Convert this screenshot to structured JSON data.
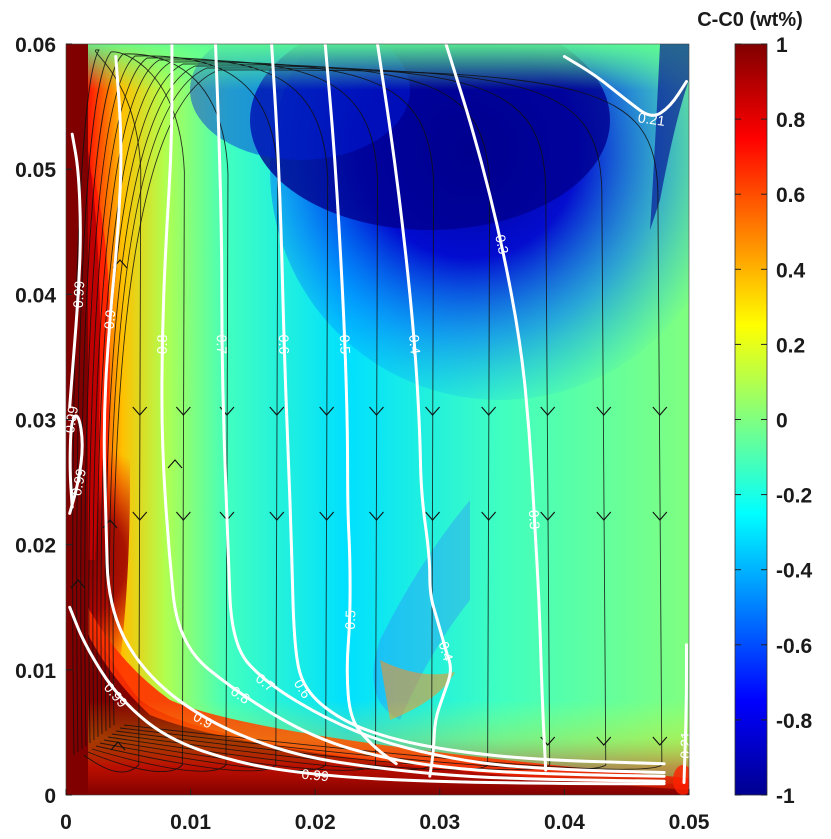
{
  "chart_data": {
    "type": "heatmap",
    "title": "",
    "xlabel": "",
    "ylabel": "",
    "xlim": [
      0,
      0.05
    ],
    "ylim": [
      0,
      0.06
    ],
    "x_ticks": [
      "0",
      "0.01",
      "0.02",
      "0.03",
      "0.04",
      "0.05"
    ],
    "y_ticks": [
      "0",
      "0.01",
      "0.02",
      "0.03",
      "0.04",
      "0.05",
      "0.06"
    ],
    "colorbar": {
      "title": "C-C0 (wt%)",
      "range": [
        -1,
        1
      ],
      "ticks": [
        "-1",
        "-0.8",
        "-0.6",
        "-0.4",
        "-0.2",
        "0",
        "0.2",
        "0.4",
        "0.6",
        "0.8",
        "1"
      ],
      "colormap": [
        "#00008f",
        "#0000ff",
        "#0080ff",
        "#00ffff",
        "#80ff80",
        "#ffff00",
        "#ff8000",
        "#ff0000",
        "#800000"
      ]
    },
    "contours": [
      {
        "level": 0.99,
        "label": "0.99",
        "points": [
          [
            0.0005,
            0.0528
          ],
          [
            0.001,
            0.05
          ],
          [
            0.0012,
            0.045
          ],
          [
            0.001,
            0.04
          ],
          [
            0.0006,
            0.035
          ],
          [
            0.0003,
            0.031
          ]
        ]
      },
      {
        "level": 0.99,
        "label": "0.99",
        "points": [
          [
            0.0003,
            0.0225
          ],
          [
            0.001,
            0.025
          ],
          [
            0.0014,
            0.028
          ],
          [
            0.001,
            0.0305
          ],
          [
            0.0004,
            0.03
          ],
          [
            0.0003,
            0.026
          ],
          [
            0.0005,
            0.023
          ]
        ]
      },
      {
        "level": 0.99,
        "label": "0.99",
        "points": [
          [
            0.0003,
            0.015
          ],
          [
            0.0015,
            0.012
          ],
          [
            0.004,
            0.008
          ],
          [
            0.008,
            0.0045
          ],
          [
            0.014,
            0.0025
          ],
          [
            0.02,
            0.0016
          ],
          [
            0.028,
            0.0011
          ],
          [
            0.04,
            0.0009
          ],
          [
            0.048,
            0.0009
          ]
        ]
      },
      {
        "level": 0.9,
        "label": "0.9",
        "points": [
          [
            0.004,
            0.059
          ],
          [
            0.0045,
            0.052
          ],
          [
            0.0042,
            0.045
          ],
          [
            0.0035,
            0.038
          ],
          [
            0.003,
            0.03
          ],
          [
            0.0032,
            0.022
          ],
          [
            0.0034,
            0.015
          ],
          [
            0.006,
            0.01
          ],
          [
            0.011,
            0.006
          ],
          [
            0.018,
            0.0032
          ],
          [
            0.026,
            0.002
          ],
          [
            0.033,
            0.0014
          ],
          [
            0.041,
            0.0012
          ],
          [
            0.048,
            0.0011
          ]
        ]
      },
      {
        "level": 0.8,
        "label": "0.8",
        "points": [
          [
            0.0085,
            0.06
          ],
          [
            0.0085,
            0.052
          ],
          [
            0.008,
            0.044
          ],
          [
            0.0077,
            0.036
          ],
          [
            0.0077,
            0.028
          ],
          [
            0.0082,
            0.02
          ],
          [
            0.009,
            0.012
          ],
          [
            0.014,
            0.008
          ],
          [
            0.02,
            0.0045
          ],
          [
            0.026,
            0.0028
          ],
          [
            0.033,
            0.0019
          ],
          [
            0.042,
            0.0016
          ],
          [
            0.048,
            0.0015
          ]
        ]
      },
      {
        "level": 0.7,
        "label": "0.7",
        "points": [
          [
            0.012,
            0.06
          ],
          [
            0.0123,
            0.052
          ],
          [
            0.0125,
            0.044
          ],
          [
            0.0125,
            0.036
          ],
          [
            0.0127,
            0.028
          ],
          [
            0.013,
            0.02
          ],
          [
            0.0133,
            0.012
          ],
          [
            0.016,
            0.009
          ],
          [
            0.021,
            0.006
          ],
          [
            0.026,
            0.004
          ],
          [
            0.033,
            0.0025
          ],
          [
            0.04,
            0.002
          ],
          [
            0.048,
            0.0018
          ]
        ]
      },
      {
        "level": 0.6,
        "label": "0.6",
        "points": [
          [
            0.0165,
            0.06
          ],
          [
            0.017,
            0.052
          ],
          [
            0.0173,
            0.044
          ],
          [
            0.0175,
            0.036
          ],
          [
            0.0178,
            0.028
          ],
          [
            0.0181,
            0.02
          ],
          [
            0.0183,
            0.012
          ],
          [
            0.019,
            0.0085
          ],
          [
            0.022,
            0.006
          ],
          [
            0.026,
            0.0045
          ],
          [
            0.031,
            0.0035
          ],
          [
            0.038,
            0.0028
          ],
          [
            0.048,
            0.0025
          ]
        ]
      },
      {
        "level": 0.5,
        "label": "0.5",
        "points": [
          [
            0.0208,
            0.06
          ],
          [
            0.0215,
            0.052
          ],
          [
            0.022,
            0.044
          ],
          [
            0.0224,
            0.036
          ],
          [
            0.0226,
            0.029
          ],
          [
            0.0226,
            0.023
          ],
          [
            0.0228,
            0.019
          ],
          [
            0.0228,
            0.014
          ],
          [
            0.0225,
            0.01
          ],
          [
            0.0228,
            0.006
          ],
          [
            0.0245,
            0.004
          ],
          [
            0.0265,
            0.0025
          ]
        ]
      },
      {
        "level": 0.4,
        "label": "0.4",
        "points": [
          [
            0.025,
            0.06
          ],
          [
            0.0262,
            0.052
          ],
          [
            0.0272,
            0.044
          ],
          [
            0.028,
            0.036
          ],
          [
            0.0284,
            0.029
          ],
          [
            0.0285,
            0.024
          ],
          [
            0.0292,
            0.019
          ],
          [
            0.0292,
            0.016
          ],
          [
            0.0298,
            0.014
          ],
          [
            0.0305,
            0.0115
          ],
          [
            0.031,
            0.01
          ],
          [
            0.0303,
            0.008
          ],
          [
            0.0296,
            0.006
          ],
          [
            0.0295,
            0.0035
          ],
          [
            0.0292,
            0.0015
          ]
        ]
      },
      {
        "level": 0.3,
        "label": "0.3",
        "points": [
          [
            0.0305,
            0.06
          ],
          [
            0.033,
            0.052
          ],
          [
            0.035,
            0.044
          ],
          [
            0.0365,
            0.036
          ],
          [
            0.0372,
            0.029
          ],
          [
            0.0376,
            0.022
          ],
          [
            0.038,
            0.015
          ],
          [
            0.0382,
            0.008
          ],
          [
            0.0385,
            0.002
          ]
        ]
      },
      {
        "level": 0.21,
        "label": "0.21",
        "points": [
          [
            0.04,
            0.059
          ],
          [
            0.0425,
            0.0575
          ],
          [
            0.045,
            0.0555
          ],
          [
            0.047,
            0.054
          ],
          [
            0.0485,
            0.055
          ],
          [
            0.0498,
            0.057
          ]
        ]
      },
      {
        "level": 0.21,
        "label": "0.21",
        "points": [
          [
            0.0498,
            0.012
          ],
          [
            0.0498,
            0.008
          ],
          [
            0.0497,
            0.004
          ],
          [
            0.0496,
            0.001
          ]
        ]
      }
    ],
    "contour_labels_shown": [
      "0.99",
      "0.9",
      "0.8",
      "0.7",
      "0.6",
      "0.5",
      "0.4",
      "0.3",
      "0.21"
    ],
    "streamlines": "black streamlines with arrowheads; flow rises along left wall, turns right near top and descends through the interior",
    "grid": false
  }
}
